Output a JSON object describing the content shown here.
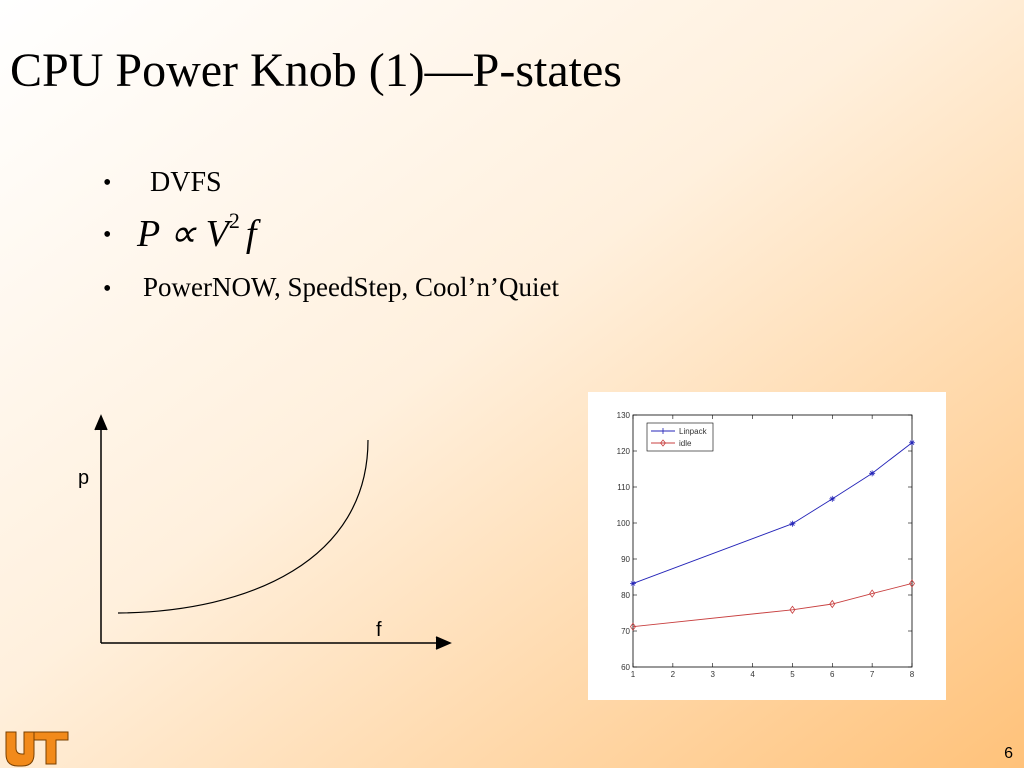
{
  "title": "CPU Power Knob (1)—P-states",
  "bullets": [
    "DVFS",
    {
      "base": "P ∝ V",
      "sup": "2",
      "tail": "f"
    },
    "PowerNOW, SpeedStep, Cool’n’Quiet"
  ],
  "sketch": {
    "y_label": "p",
    "x_label": "f"
  },
  "chart_data": {
    "type": "line",
    "x": [
      1,
      5,
      6,
      7,
      8
    ],
    "series": [
      {
        "name": "Linpack",
        "color": "#2424b8",
        "marker": "star",
        "values": [
          83.2,
          99.8,
          106.7,
          113.8,
          122.3
        ]
      },
      {
        "name": "idle",
        "color": "#c84040",
        "marker": "diamond",
        "values": [
          71.2,
          75.9,
          77.5,
          80.4,
          83.2
        ]
      }
    ],
    "xlim": [
      1,
      8
    ],
    "xticks": [
      1,
      2,
      3,
      4,
      5,
      6,
      7,
      8
    ],
    "ylim": [
      60,
      130
    ],
    "yticks": [
      60,
      70,
      80,
      90,
      100,
      110,
      120,
      130
    ],
    "grid": false,
    "legend": "upper left"
  },
  "page_number": "6"
}
